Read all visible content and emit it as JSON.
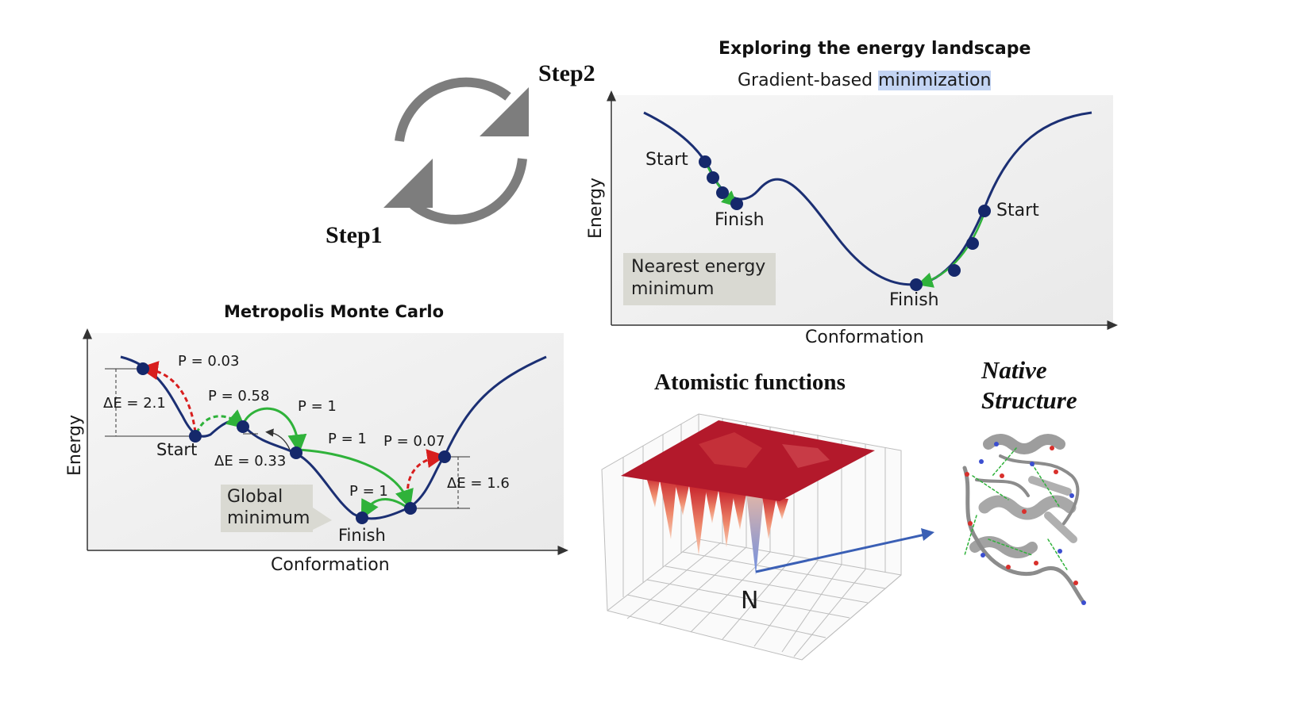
{
  "cycle": {
    "step1": "Step1",
    "step2": "Step2"
  },
  "landscape": {
    "title": "Exploring the energy landscape",
    "subtitle_prefix": "Gradient-based ",
    "subtitle_highlight": "minimization",
    "ylabel": "Energy",
    "xlabel": "Conformation",
    "start_left": "Start",
    "finish_left": "Finish",
    "start_right": "Start",
    "finish_right": "Finish",
    "callout_line1": "Nearest energy",
    "callout_line2": "minimum"
  },
  "metropolis": {
    "title": "Metropolis Monte Carlo",
    "ylabel": "Energy",
    "xlabel": "Conformation",
    "start": "Start",
    "finish": "Finish",
    "callout_line1": "Global",
    "callout_line2": "minimum",
    "p_003": "P = 0.03",
    "p_058": "P = 0.58",
    "p_1a": "P = 1",
    "p_1b": "P = 1",
    "p_1c": "P = 1",
    "p_007": "P = 0.07",
    "de_21": "ΔE = 2.1",
    "de_033": "ΔE = 0.33",
    "de_16": "ΔE = 1.6"
  },
  "atomistic": {
    "title": "Atomistic functions",
    "native_marker": "N"
  },
  "native": {
    "line1": "Native",
    "line2": "Structure"
  },
  "colors": {
    "curve": "#1b2f73",
    "dot": "#15286b",
    "green_arrow": "#2fb23a",
    "red_arrow": "#d81e1e",
    "cycle_arrow": "#7d7d7d",
    "highlight": "#c3d4f3",
    "callout": "#d9d9d2",
    "surface_red": "#b3192b",
    "pointer_blue": "#3a5fb5"
  }
}
